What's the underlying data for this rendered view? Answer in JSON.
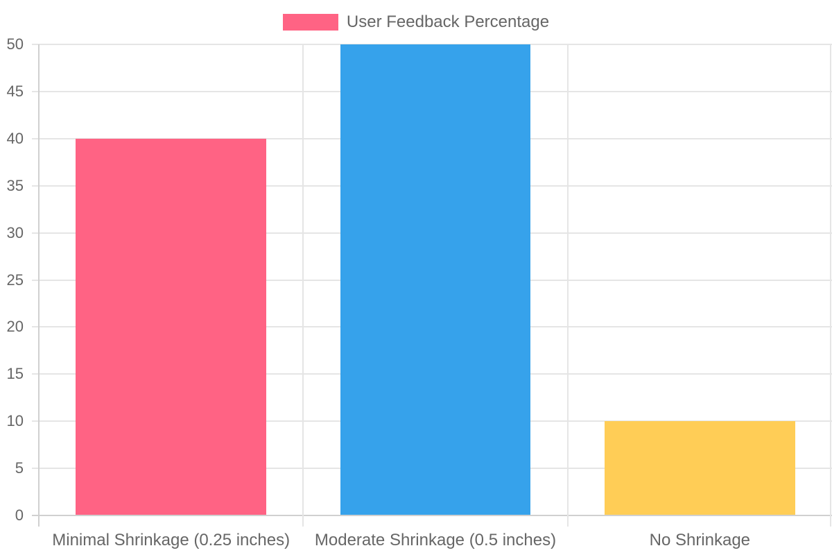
{
  "chart_data": {
    "type": "bar",
    "title": "",
    "categories": [
      "Minimal Shrinkage (0.25 inches)",
      "Moderate Shrinkage (0.5 inches)",
      "No Shrinkage"
    ],
    "series": [
      {
        "name": "User Feedback Percentage",
        "values": [
          40,
          50,
          10
        ],
        "colors": [
          "#ff6384",
          "#36a2eb",
          "#ffcd56"
        ]
      }
    ],
    "xlabel": "",
    "ylabel": "",
    "ylim": [
      0,
      50
    ],
    "yticks": [
      0,
      5,
      10,
      15,
      20,
      25,
      30,
      35,
      40,
      45,
      50
    ],
    "grid": true,
    "legend_position": "top"
  },
  "legend": {
    "label": "User Feedback Percentage",
    "color": "#ff6384"
  },
  "y_axis": {
    "ticks": [
      "50",
      "45",
      "40",
      "35",
      "30",
      "25",
      "20",
      "15",
      "10",
      "5",
      "0"
    ]
  },
  "x_axis": {
    "labels": [
      "Minimal Shrinkage (0.25 inches)",
      "Moderate Shrinkage (0.5 inches)",
      "No Shrinkage"
    ]
  }
}
